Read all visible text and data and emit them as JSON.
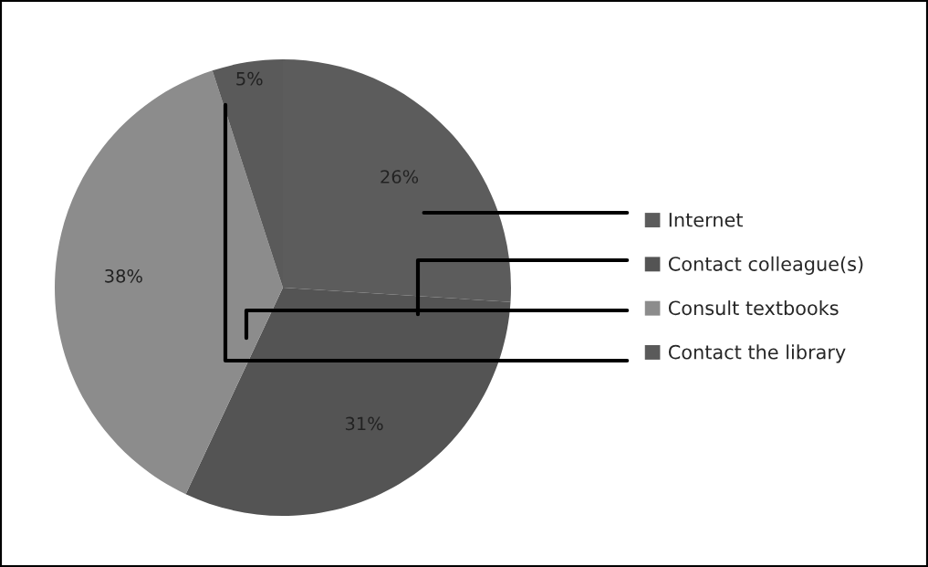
{
  "chart_data": {
    "type": "pie",
    "categories": [
      "Internet",
      "Contact colleague(s)",
      "Consult textbooks",
      "Contact the library"
    ],
    "values": [
      26,
      31,
      38,
      5
    ],
    "colors": [
      "#5c5c5c",
      "#545454",
      "#8c8c8c",
      "#5a5a5a"
    ],
    "value_labels": [
      "26%",
      "31%",
      "38%",
      "5%"
    ],
    "legend": "right"
  }
}
